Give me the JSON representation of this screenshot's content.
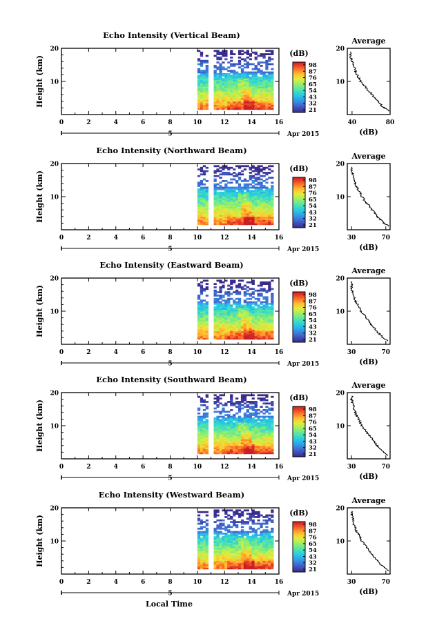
{
  "figure": {
    "xlabel": "Local Time",
    "date_label": "Apr 2015",
    "date_day": "5",
    "colorbar_unit": "(dB)",
    "average_title": "Average",
    "average_xlabel": "(dB)"
  },
  "colorscale": [
    "#3a2a8c",
    "#3f4db4",
    "#3f74d6",
    "#2fa0e8",
    "#25c7e6",
    "#3fddc0",
    "#6fea8e",
    "#a8ef5c",
    "#e3ec3a",
    "#ffc531",
    "#ff8a2a",
    "#f04828",
    "#c81e24"
  ],
  "chart_data": [
    {
      "type": "heatmap",
      "title": "Echo Intensity (Vertical Beam)",
      "ylabel": "Height (km)",
      "xlim": [
        0,
        16
      ],
      "ylim": [
        0,
        20
      ],
      "xticks": [
        "0",
        "2",
        "4",
        "6",
        "8",
        "10",
        "12",
        "14",
        "16"
      ],
      "yticks": [
        "10",
        "20"
      ],
      "colorbar_ticks": [
        "98",
        "87",
        "76",
        "65",
        "54",
        "43",
        "32",
        "21"
      ],
      "data_x_range": [
        10,
        15.6
      ],
      "gap_x": [
        10.65,
        11.1
      ],
      "profile": {
        "xlabel": "(dB)",
        "xlim": [
          35,
          80
        ],
        "xticks": [
          "40",
          "80"
        ],
        "yticks": [
          "10",
          "20"
        ],
        "height_km": [
          1,
          2,
          3,
          4,
          5,
          6,
          7,
          8,
          9,
          10,
          11,
          12,
          13,
          14,
          15,
          16,
          17,
          18,
          19
        ],
        "db": [
          79,
          74,
          70,
          67,
          64,
          61,
          58,
          55,
          52,
          49,
          47,
          45,
          44,
          43,
          41,
          40,
          39,
          38,
          39
        ]
      }
    },
    {
      "type": "heatmap",
      "title": "Echo Intensity (Northward Beam)",
      "ylabel": "Height (km)",
      "xlim": [
        0,
        16
      ],
      "ylim": [
        0,
        20
      ],
      "xticks": [
        "0",
        "2",
        "4",
        "6",
        "8",
        "10",
        "12",
        "14",
        "16"
      ],
      "yticks": [
        "10",
        "20"
      ],
      "colorbar_ticks": [
        "98",
        "87",
        "76",
        "65",
        "54",
        "43",
        "32",
        "21"
      ],
      "data_x_range": [
        10,
        15.6
      ],
      "gap_x": [
        10.65,
        11.1
      ],
      "profile": {
        "xlabel": "(dB)",
        "xlim": [
          25,
          75
        ],
        "xticks": [
          "30",
          "70"
        ],
        "yticks": [
          "10",
          "20"
        ],
        "height_km": [
          1,
          2,
          3,
          4,
          5,
          6,
          7,
          8,
          9,
          10,
          11,
          12,
          13,
          14,
          15,
          16,
          17,
          18,
          19
        ],
        "db": [
          74,
          68,
          64,
          60,
          57,
          54,
          51,
          48,
          45,
          42,
          40,
          38,
          36,
          34,
          33,
          32,
          31,
          30,
          31
        ]
      }
    },
    {
      "type": "heatmap",
      "title": "Echo Intensity (Eastward Beam)",
      "ylabel": "Height (km)",
      "xlim": [
        0,
        16
      ],
      "ylim": [
        0,
        20
      ],
      "xticks": [
        "0",
        "2",
        "4",
        "6",
        "8",
        "10",
        "12",
        "14",
        "16"
      ],
      "yticks": [
        "10",
        "20"
      ],
      "colorbar_ticks": [
        "98",
        "87",
        "76",
        "65",
        "54",
        "43",
        "32",
        "21"
      ],
      "data_x_range": [
        10,
        15.6
      ],
      "gap_x": [
        10.65,
        11.1
      ],
      "profile": {
        "xlabel": "(dB)",
        "xlim": [
          25,
          75
        ],
        "xticks": [
          "30",
          "70"
        ],
        "yticks": [
          "10",
          "20"
        ],
        "height_km": [
          1,
          2,
          3,
          4,
          5,
          6,
          7,
          8,
          9,
          10,
          11,
          12,
          13,
          14,
          15,
          16,
          17,
          18,
          19
        ],
        "db": [
          73,
          67,
          63,
          59,
          56,
          53,
          50,
          47,
          44,
          41,
          39,
          37,
          35,
          33,
          32,
          31,
          30,
          30,
          31
        ]
      }
    },
    {
      "type": "heatmap",
      "title": "Echo Intensity (Southward Beam)",
      "ylabel": "Height (km)",
      "xlim": [
        0,
        16
      ],
      "ylim": [
        0,
        20
      ],
      "xticks": [
        "0",
        "2",
        "4",
        "6",
        "8",
        "10",
        "12",
        "14",
        "16"
      ],
      "yticks": [
        "10",
        "20"
      ],
      "colorbar_ticks": [
        "98",
        "87",
        "76",
        "65",
        "54",
        "43",
        "32",
        "21"
      ],
      "data_x_range": [
        10,
        15.6
      ],
      "gap_x": [
        10.65,
        11.1
      ],
      "profile": {
        "xlabel": "(dB)",
        "xlim": [
          25,
          75
        ],
        "xticks": [
          "30",
          "70"
        ],
        "yticks": [
          "10",
          "20"
        ],
        "height_km": [
          1,
          2,
          3,
          4,
          5,
          6,
          7,
          8,
          9,
          10,
          11,
          12,
          13,
          14,
          15,
          16,
          17,
          18,
          19
        ],
        "db": [
          73,
          68,
          64,
          60,
          57,
          54,
          51,
          48,
          45,
          42,
          40,
          38,
          36,
          34,
          33,
          32,
          31,
          30,
          31
        ]
      }
    },
    {
      "type": "heatmap",
      "title": "Echo Intensity (Westward Beam)",
      "ylabel": "Height (km)",
      "xlim": [
        0,
        16
      ],
      "ylim": [
        0,
        20
      ],
      "xticks": [
        "0",
        "2",
        "4",
        "6",
        "8",
        "10",
        "12",
        "14",
        "16"
      ],
      "yticks": [
        "10",
        "20"
      ],
      "colorbar_ticks": [
        "98",
        "87",
        "76",
        "65",
        "54",
        "43",
        "32",
        "21"
      ],
      "data_x_range": [
        10,
        15.6
      ],
      "gap_x": [
        10.65,
        11.1
      ],
      "profile": {
        "xlabel": "(dB)",
        "xlim": [
          25,
          75
        ],
        "xticks": [
          "30",
          "70"
        ],
        "yticks": [
          "10",
          "20"
        ],
        "height_km": [
          1,
          2,
          3,
          4,
          5,
          6,
          7,
          8,
          9,
          10,
          11,
          12,
          13,
          14,
          15,
          16,
          17,
          18,
          19
        ],
        "db": [
          74,
          68,
          64,
          60,
          57,
          54,
          51,
          48,
          45,
          42,
          40,
          38,
          36,
          34,
          33,
          32,
          31,
          30,
          31
        ]
      }
    }
  ]
}
